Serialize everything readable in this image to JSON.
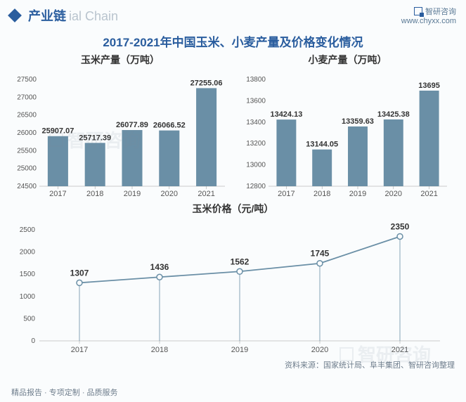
{
  "header": {
    "title_cn": "产业链",
    "title_en": "ial Chain",
    "brand": "智研咨询",
    "url": "www.chyxx.com"
  },
  "main_title": "2017-2021年中国玉米、小麦产量及价格变化情况",
  "corn_chart": {
    "type": "bar",
    "title": "玉米产量（万吨）",
    "categories": [
      "2017",
      "2018",
      "2019",
      "2020",
      "2021"
    ],
    "values": [
      25907.07,
      25717.39,
      26077.89,
      26066.52,
      27255.06
    ],
    "ylim": [
      24500,
      27500
    ],
    "ytick_step": 500,
    "bar_color": "#6a8fa6",
    "label_fontsize": 11
  },
  "wheat_chart": {
    "type": "bar",
    "title": "小麦产量（万吨）",
    "categories": [
      "2017",
      "2018",
      "2019",
      "2020",
      "2021"
    ],
    "values": [
      13424.13,
      13144.05,
      13359.63,
      13425.38,
      13695
    ],
    "ylim": [
      12800,
      13800
    ],
    "ytick_step": 200,
    "bar_color": "#6a8fa6",
    "label_fontsize": 11
  },
  "price_chart": {
    "type": "line",
    "title": "玉米价格（元/吨）",
    "categories": [
      "2017",
      "2018",
      "2019",
      "2020",
      "2021"
    ],
    "values": [
      1307,
      1436,
      1562,
      1745,
      2350
    ],
    "ylim": [
      0,
      2500
    ],
    "ytick_step": 500,
    "line_color": "#6a8fa6",
    "label_fontsize": 12
  },
  "source": "资料来源：国家统计局、阜丰集团、智研咨询整理",
  "footer_left": "精品报告 · 专项定制 · 品质服务",
  "watermark_text": "智研咨询"
}
